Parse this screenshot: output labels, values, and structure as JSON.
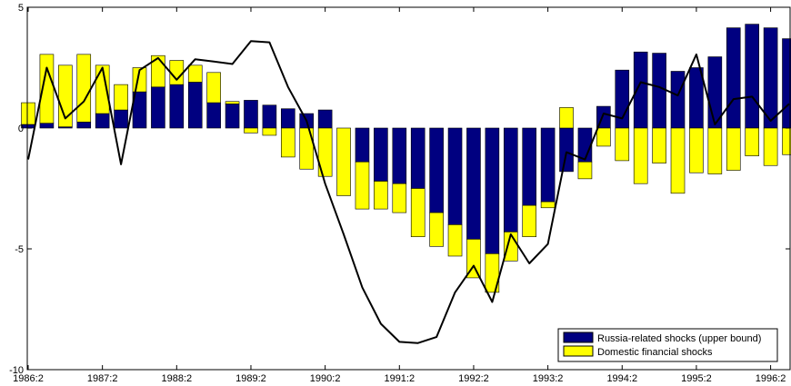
{
  "chart_data": {
    "type": "bar",
    "stacked": true,
    "title": "",
    "xlabel": "",
    "ylabel": "",
    "ylim": [
      -10,
      5
    ],
    "yticks": [
      -10,
      -5,
      0,
      5
    ],
    "xtick_labels": [
      "1986:2",
      "1987:2",
      "1988:2",
      "1989:2",
      "1990:2",
      "1991:2",
      "1992:2",
      "1993:2",
      "1994:2",
      "1995:2",
      "1996:2"
    ],
    "x_start_quarter": "1986:2",
    "legend": {
      "placement": "bottom-right",
      "entries": [
        "Russia-related shocks (upper bound)",
        "Domestic financial shocks"
      ]
    },
    "colors": {
      "russia": "#000080",
      "domestic": "#ffff00",
      "line": "#000000",
      "axis": "#000000"
    },
    "series": [
      {
        "name": "Russia-related shocks (upper bound)",
        "values": [
          0.15,
          0.2,
          0.05,
          0.25,
          0.6,
          0.75,
          1.5,
          1.7,
          1.8,
          1.9,
          1.05,
          1.0,
          1.15,
          0.95,
          0.8,
          0.6,
          0.75,
          0,
          -1.4,
          -2.2,
          -2.3,
          -2.5,
          -3.5,
          -4.0,
          -4.6,
          -5.2,
          -4.3,
          -3.2,
          -3.05,
          -1.8,
          -1.4,
          0.9,
          2.4,
          3.15,
          3.1,
          2.35,
          2.5,
          2.95,
          4.15,
          4.3,
          4.15,
          3.7
        ]
      },
      {
        "name": "Domestic financial shocks",
        "values": [
          0.9,
          2.85,
          2.55,
          2.8,
          2.0,
          1.05,
          1.0,
          1.3,
          1.0,
          0.7,
          1.25,
          0.1,
          -0.2,
          -0.3,
          -1.2,
          -1.7,
          -2.0,
          -2.8,
          -1.95,
          -1.15,
          -1.2,
          -2.0,
          -1.4,
          -1.3,
          -1.6,
          -1.6,
          -1.2,
          -1.3,
          -0.25,
          0.85,
          -0.7,
          -0.75,
          -1.35,
          -2.3,
          -1.45,
          -2.7,
          -1.85,
          -1.9,
          -1.75,
          -1.15,
          -1.55,
          -1.1
        ]
      }
    ],
    "line_series": {
      "values": [
        -1.3,
        2.5,
        0.4,
        1.1,
        2.5,
        -1.5,
        2.4,
        2.9,
        2.0,
        2.85,
        2.75,
        2.65,
        3.6,
        3.55,
        1.7,
        0.3,
        -2.3,
        -4.4,
        -6.6,
        -8.1,
        -8.85,
        -8.9,
        -8.65,
        -6.8,
        -5.7,
        -7.2,
        -4.4,
        -5.6,
        -4.8,
        -1.0,
        -1.3,
        0.6,
        0.4,
        1.9,
        1.7,
        1.35,
        3.05,
        0.15,
        1.2,
        1.3,
        0.3,
        1.0
      ]
    }
  }
}
